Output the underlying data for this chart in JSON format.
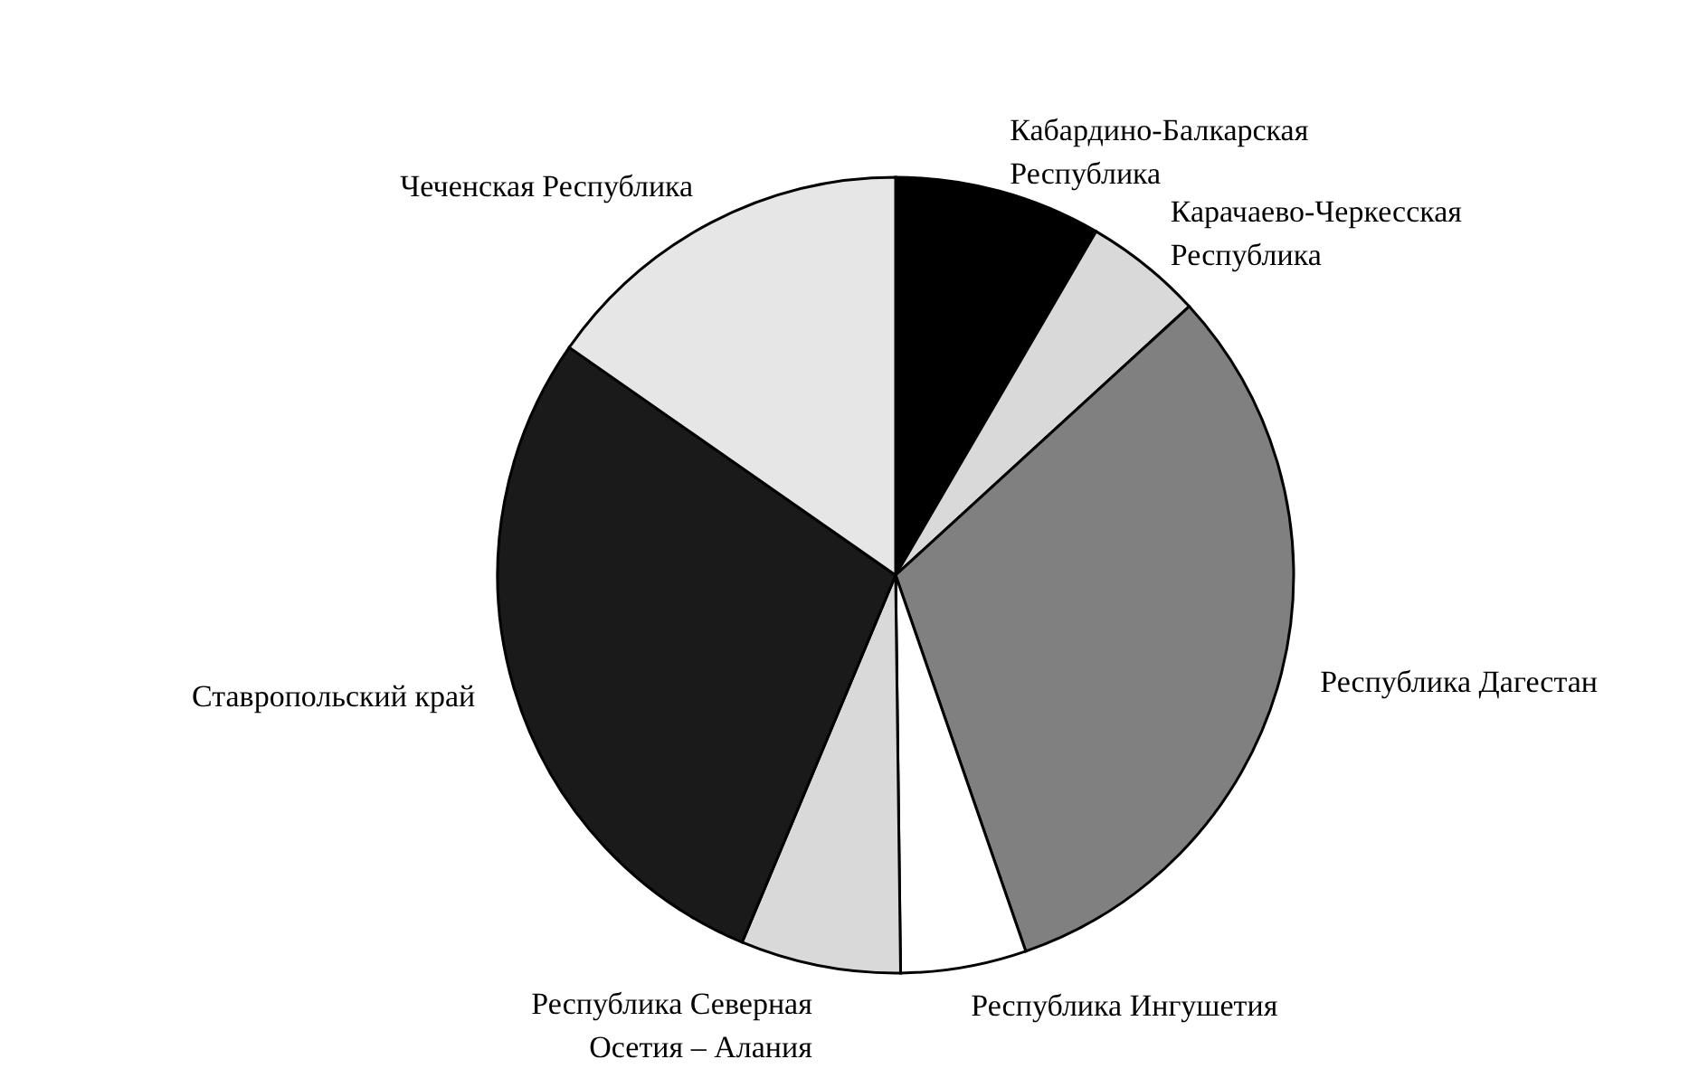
{
  "chart_data": {
    "type": "pie",
    "categories": [
      "Кабардино-Балкарская\nРеспублика",
      "Карачаево-Черкесская\nРеспублика",
      "Республика Дагестан",
      "Республика Ингушетия",
      "Республика Северная\nОсетия – Алания",
      "Ставропольский край",
      "Чеченская Республика"
    ],
    "values": [
      8.4,
      4.8,
      31.5,
      5.1,
      6.5,
      28.4,
      15.3
    ],
    "colors": [
      "#000000",
      "#d9d9d9",
      "#808080",
      "#ffffff",
      "#d9d9d9",
      "#1a1a1a",
      "#e6e6e6"
    ]
  }
}
